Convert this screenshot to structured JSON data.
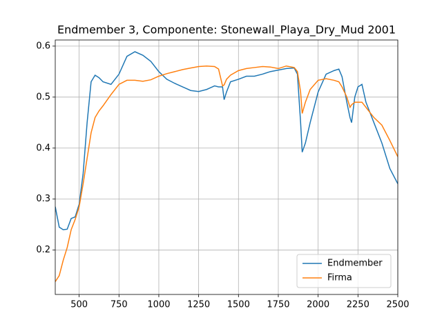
{
  "chart_data": {
    "type": "line",
    "title": "Endmember 3, Componente: Stonewall_Playa_Dry_Mud 2001",
    "x": [
      350,
      375,
      400,
      425,
      450,
      475,
      500,
      525,
      550,
      575,
      600,
      625,
      650,
      700,
      750,
      800,
      850,
      900,
      950,
      1000,
      1050,
      1100,
      1150,
      1200,
      1250,
      1300,
      1350,
      1375,
      1400,
      1410,
      1425,
      1450,
      1500,
      1550,
      1600,
      1650,
      1700,
      1750,
      1800,
      1850,
      1870,
      1890,
      1900,
      1920,
      1950,
      2000,
      2050,
      2100,
      2130,
      2150,
      2180,
      2200,
      2210,
      2230,
      2250,
      2275,
      2300,
      2350,
      2400,
      2450,
      2500
    ],
    "series": [
      {
        "name": "Endmember",
        "color": "#1f77b4",
        "values": [
          0.285,
          0.245,
          0.24,
          0.241,
          0.262,
          0.265,
          0.29,
          0.35,
          0.45,
          0.53,
          0.543,
          0.538,
          0.53,
          0.525,
          0.545,
          0.58,
          0.589,
          0.582,
          0.57,
          0.55,
          0.535,
          0.527,
          0.52,
          0.513,
          0.511,
          0.515,
          0.522,
          0.52,
          0.52,
          0.495,
          0.51,
          0.53,
          0.535,
          0.541,
          0.541,
          0.545,
          0.55,
          0.553,
          0.556,
          0.557,
          0.545,
          0.45,
          0.392,
          0.41,
          0.45,
          0.51,
          0.545,
          0.552,
          0.555,
          0.54,
          0.49,
          0.46,
          0.45,
          0.5,
          0.52,
          0.525,
          0.49,
          0.45,
          0.41,
          0.36,
          0.33
        ]
      },
      {
        "name": "Firma",
        "color": "#ff7f0e",
        "values": [
          0.138,
          0.15,
          0.18,
          0.205,
          0.24,
          0.26,
          0.285,
          0.33,
          0.38,
          0.43,
          0.46,
          0.473,
          0.483,
          0.505,
          0.525,
          0.533,
          0.533,
          0.531,
          0.534,
          0.541,
          0.546,
          0.55,
          0.554,
          0.557,
          0.56,
          0.561,
          0.56,
          0.555,
          0.522,
          0.524,
          0.535,
          0.543,
          0.552,
          0.556,
          0.558,
          0.56,
          0.559,
          0.556,
          0.561,
          0.558,
          0.55,
          0.51,
          0.468,
          0.49,
          0.515,
          0.533,
          0.536,
          0.533,
          0.53,
          0.52,
          0.5,
          0.48,
          0.485,
          0.49,
          0.49,
          0.49,
          0.48,
          0.46,
          0.445,
          0.415,
          0.383
        ]
      }
    ],
    "xlim": [
      350,
      2500
    ],
    "ylim": [
      0.113,
      0.612
    ],
    "xticks": [
      500,
      750,
      1000,
      1250,
      1500,
      1750,
      2000,
      2250,
      2500
    ],
    "yticks": [
      0.2,
      0.3,
      0.4,
      0.5,
      0.6
    ],
    "grid": true,
    "legend": "lower right"
  }
}
